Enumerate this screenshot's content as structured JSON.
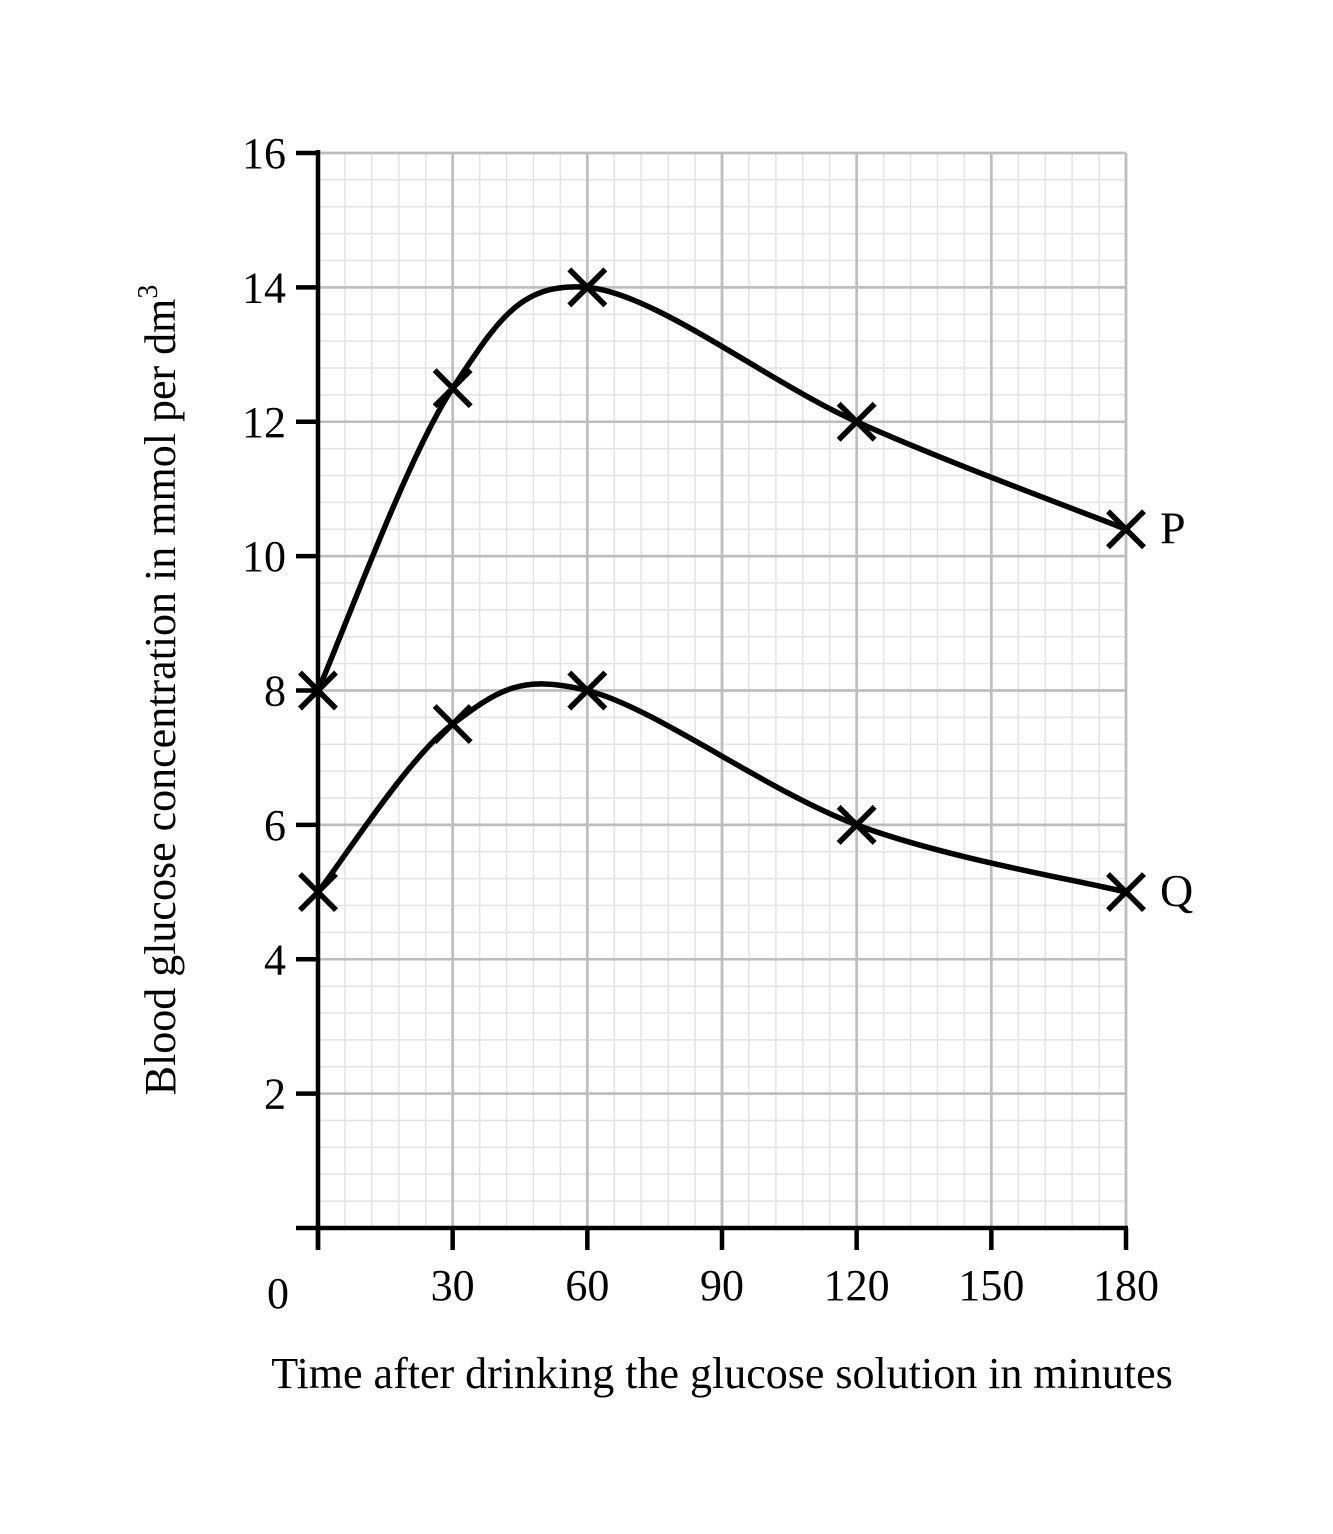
{
  "chart_data": {
    "type": "line",
    "title": "",
    "xlabel": "Time after drinking the glucose solution in minutes",
    "ylabel": {
      "text": "Blood glucose concentration in mmol per dm",
      "superscript": "3"
    },
    "xlim": [
      0,
      180
    ],
    "ylim": [
      0,
      16
    ],
    "x_ticks": [
      0,
      30,
      60,
      90,
      120,
      150,
      180
    ],
    "x_tick_labels": [
      "0",
      "30",
      "60",
      "90",
      "120",
      "150",
      "180"
    ],
    "y_ticks": [
      2,
      4,
      6,
      8,
      10,
      12,
      14,
      16
    ],
    "y_tick_labels": [
      "2",
      "4",
      "6",
      "8",
      "10",
      "12",
      "14",
      "16"
    ],
    "x_minor_step": 6,
    "y_minor_step": 0.4,
    "x_major_step": 30,
    "y_major_step": 2,
    "grid": true,
    "legend": "none",
    "line_color": "#000000",
    "marker": "cross",
    "series": [
      {
        "name": "P",
        "x": [
          0,
          30,
          60,
          120,
          180
        ],
        "y": [
          8,
          12.5,
          14,
          12,
          10.4
        ]
      },
      {
        "name": "Q",
        "x": [
          0,
          30,
          60,
          120,
          180
        ],
        "y": [
          5,
          7.5,
          8,
          6,
          5
        ]
      }
    ]
  }
}
